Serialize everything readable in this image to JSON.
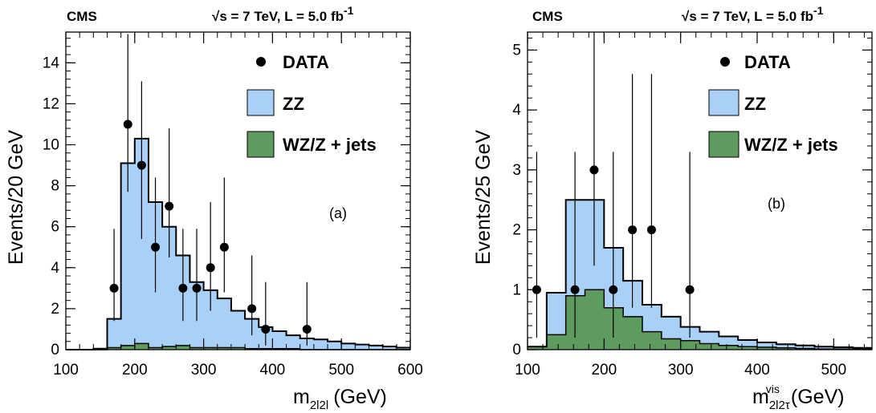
{
  "chart_data": [
    {
      "type": "histogram",
      "experiment": "CMS",
      "energy_label": "√s = 7 TeV, L = 5.0 fb",
      "energy_superscript": "-1",
      "panel_label": "(a)",
      "ylabel": "Events/20 GeV",
      "xlabel": "m",
      "xlabel_sub": "2l2l",
      "xlabel_unit": "(GeV)",
      "xlim": [
        100,
        600
      ],
      "ylim": [
        0,
        15.5
      ],
      "xticks": [
        "100",
        "200",
        "300",
        "400",
        "500",
        "600"
      ],
      "yticks": [
        "0",
        "2",
        "4",
        "6",
        "8",
        "10",
        "12",
        "14"
      ],
      "legend": [
        "DATA",
        "ZZ",
        "WZ/Z + jets"
      ],
      "colors": {
        "ZZ": "#a9d1f7",
        "WZ/Z + jets": "#5e9b5e"
      },
      "bin_edges": [
        100,
        120,
        140,
        160,
        180,
        200,
        220,
        240,
        260,
        280,
        300,
        320,
        340,
        360,
        380,
        400,
        420,
        440,
        460,
        480,
        500,
        520,
        540,
        560,
        580,
        600
      ],
      "total_mc": [
        0,
        0,
        0.05,
        1.5,
        9.1,
        10.3,
        7.2,
        6.0,
        4.6,
        3.3,
        2.9,
        2.5,
        1.9,
        1.5,
        1.1,
        0.9,
        0.7,
        0.55,
        0.5,
        0.4,
        0.3,
        0.25,
        0.2,
        0.15,
        0.1
      ],
      "wz_z_jets": [
        0,
        0,
        0,
        0.1,
        0.2,
        0.3,
        0.1,
        0.15,
        0.2,
        0.1,
        0.1,
        0.1,
        0.1,
        0.05,
        0.05,
        0.05,
        0.05,
        0,
        0,
        0,
        0,
        0,
        0,
        0,
        0
      ],
      "data_points": [
        {
          "x": 170,
          "y": 3,
          "lo": 1.4,
          "hi": 5.9
        },
        {
          "x": 190,
          "y": 11,
          "lo": 7.7,
          "hi": 15.4
        },
        {
          "x": 210,
          "y": 9,
          "lo": 5.4,
          "hi": 13.1
        },
        {
          "x": 230,
          "y": 5,
          "lo": 2.8,
          "hi": 8.4
        },
        {
          "x": 250,
          "y": 7,
          "lo": 4.5,
          "hi": 10.8
        },
        {
          "x": 270,
          "y": 3,
          "lo": 1.4,
          "hi": 5.9
        },
        {
          "x": 290,
          "y": 3,
          "lo": 1.4,
          "hi": 5.9
        },
        {
          "x": 310,
          "y": 4,
          "lo": 1.9,
          "hi": 7.2
        },
        {
          "x": 330,
          "y": 5,
          "lo": 2.8,
          "hi": 8.4
        },
        {
          "x": 370,
          "y": 2,
          "lo": 0.7,
          "hi": 4.6
        },
        {
          "x": 390,
          "y": 1,
          "lo": 0.2,
          "hi": 3.3
        },
        {
          "x": 450,
          "y": 1,
          "lo": 0.2,
          "hi": 3.3
        }
      ]
    },
    {
      "type": "histogram",
      "experiment": "CMS",
      "energy_label": "√s = 7 TeV, L = 5.0 fb",
      "energy_superscript": "-1",
      "panel_label": "(b)",
      "ylabel": "Events/25 GeV",
      "xlabel": "m",
      "xlabel_sub": "2l2τ",
      "xlabel_sup": "vis",
      "xlabel_unit": "(GeV)",
      "xlim": [
        100,
        550
      ],
      "ylim": [
        0,
        5.3
      ],
      "xticks": [
        "100",
        "200",
        "300",
        "400",
        "500"
      ],
      "yticks": [
        "0",
        "1",
        "2",
        "3",
        "4",
        "5"
      ],
      "legend": [
        "DATA",
        "ZZ",
        "WZ/Z + jets"
      ],
      "colors": {
        "ZZ": "#a9d1f7",
        "WZ/Z + jets": "#5e9b5e"
      },
      "bin_edges": [
        100,
        125,
        150,
        175,
        200,
        225,
        250,
        275,
        300,
        325,
        350,
        375,
        400,
        425,
        450,
        475,
        500,
        525,
        550
      ],
      "total_mc": [
        0.05,
        0.95,
        2.5,
        2.5,
        1.7,
        1.15,
        0.75,
        0.55,
        0.38,
        0.3,
        0.22,
        0.16,
        0.12,
        0.09,
        0.07,
        0.05,
        0.04,
        0.03
      ],
      "wz_z_jets": [
        0.05,
        0.25,
        0.9,
        1.0,
        0.7,
        0.55,
        0.3,
        0.18,
        0.15,
        0.1,
        0.07,
        0.05,
        0.04,
        0.03,
        0.02,
        0.01,
        0.01,
        0.01
      ],
      "data_points": [
        {
          "x": 112,
          "y": 1,
          "lo": 0.2,
          "hi": 3.3
        },
        {
          "x": 162,
          "y": 1,
          "lo": 0.2,
          "hi": 3.3
        },
        {
          "x": 187,
          "y": 3,
          "lo": 1.4,
          "hi": 5.9
        },
        {
          "x": 212,
          "y": 1,
          "lo": 0.2,
          "hi": 3.3
        },
        {
          "x": 237,
          "y": 2,
          "lo": 0.7,
          "hi": 4.6
        },
        {
          "x": 262,
          "y": 2,
          "lo": 0.7,
          "hi": 4.6
        },
        {
          "x": 312,
          "y": 1,
          "lo": 0.2,
          "hi": 3.3
        }
      ]
    }
  ]
}
